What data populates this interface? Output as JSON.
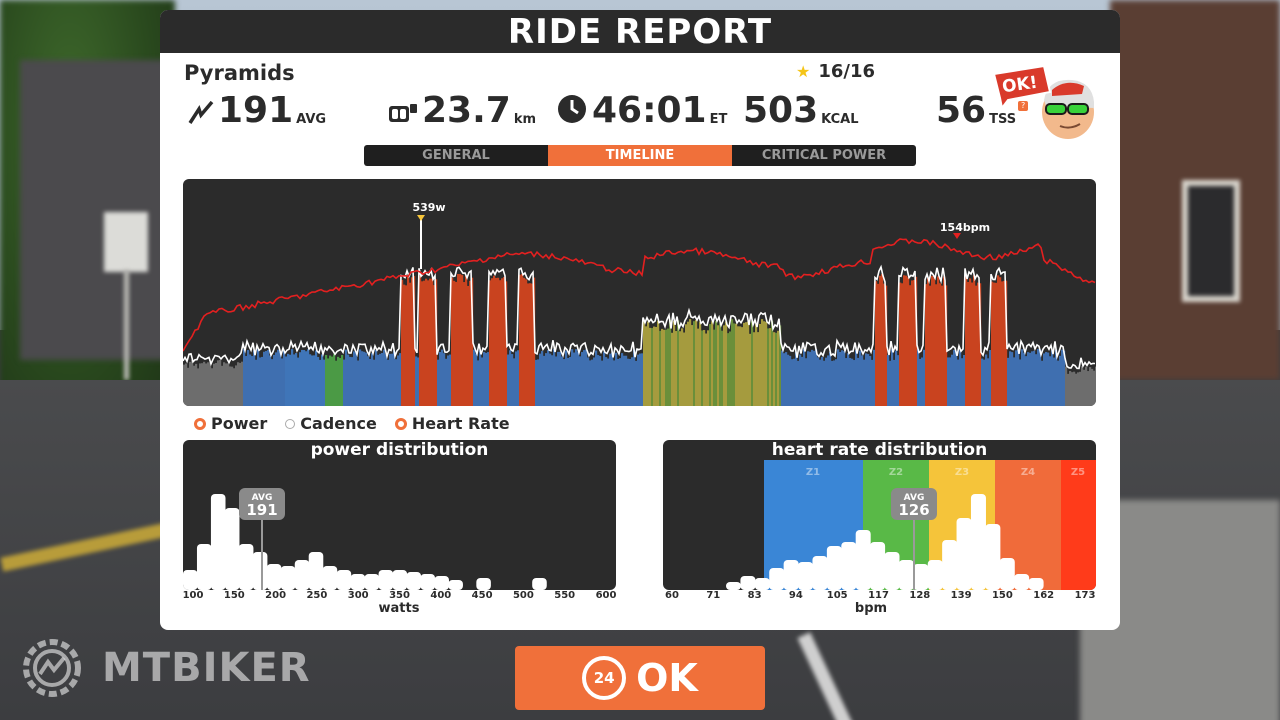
{
  "title": "RIDE REPORT",
  "route": "Pyramids",
  "stars": "16/16",
  "stats": {
    "power": {
      "value": "191",
      "unit": "AVG"
    },
    "distance": {
      "value": "23.7",
      "unit": "km"
    },
    "time": {
      "value": "46:01",
      "unit": "ET"
    },
    "energy": {
      "value": "503",
      "unit": "KCAL"
    },
    "tss": {
      "value": "56",
      "unit": "TSS",
      "help": "?"
    }
  },
  "avatar": {
    "badge": "OK!"
  },
  "tabs": [
    {
      "label": "GENERAL",
      "active": false
    },
    {
      "label": "TIMELINE",
      "active": true
    },
    {
      "label": "CRITICAL POWER",
      "active": false
    }
  ],
  "timeline": {
    "peak_power_label": "539w",
    "peak_hr_label": "154bpm"
  },
  "legend": [
    {
      "label": "Power",
      "on": true
    },
    {
      "label": "Cadence",
      "on": false
    },
    {
      "label": "Heart Rate",
      "on": true
    }
  ],
  "power_distribution": {
    "title": "power distribution",
    "avg_label": "AVG",
    "avg_value": "191",
    "ticks": [
      "100",
      "150",
      "200",
      "250",
      "300",
      "350",
      "400",
      "450",
      "500",
      "550",
      "600"
    ],
    "xlabel": "watts"
  },
  "hr_distribution": {
    "title": "heart rate distribution",
    "avg_label": "AVG",
    "avg_value": "126",
    "zones": [
      "Z1",
      "Z2",
      "Z3",
      "Z4",
      "Z5"
    ],
    "ticks": [
      "60",
      "71",
      "83",
      "94",
      "105",
      "117",
      "128",
      "139",
      "150",
      "162",
      "173"
    ],
    "xlabel": "bpm"
  },
  "ok_button": {
    "badge": "24",
    "label": "OK"
  },
  "watermark": "MTBIKER",
  "colors": {
    "accent": "#f0703a",
    "panel": "#2b2b2b",
    "z1": "#3a86d6",
    "z2": "#59b947",
    "z3": "#f5c43a",
    "z4": "#f06b3a",
    "z5": "#ff3b1a",
    "hr_line": "#e32020"
  }
}
